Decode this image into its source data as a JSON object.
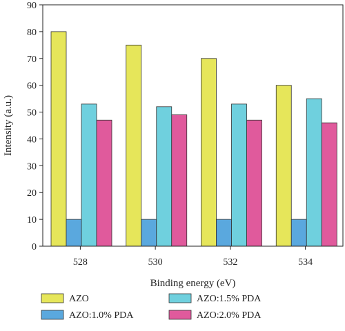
{
  "chart_data": {
    "type": "bar",
    "categories": [
      "528",
      "530",
      "532",
      "534"
    ],
    "series": [
      {
        "name": "AZO",
        "color": "#e6e65a",
        "values": [
          80,
          75,
          70,
          60
        ]
      },
      {
        "name": "AZO:1.0% PDA",
        "color": "#5aa8de",
        "values": [
          10,
          10,
          10,
          10
        ]
      },
      {
        "name": "AZO:1.5% PDA",
        "color": "#6fd0de",
        "values": [
          53,
          52,
          53,
          55
        ]
      },
      {
        "name": "AZO:2.0% PDA",
        "color": "#e05a9c",
        "values": [
          47,
          49,
          47,
          46
        ]
      }
    ],
    "title": "",
    "xlabel": "Binding energy (eV)",
    "ylabel": "Intensity (a.u.)",
    "ylim": [
      0,
      90
    ],
    "yticks": [
      "0",
      "10",
      "20",
      "30",
      "40",
      "50",
      "60",
      "70",
      "80",
      "90"
    ],
    "grid": false,
    "legend_position": "bottom"
  }
}
